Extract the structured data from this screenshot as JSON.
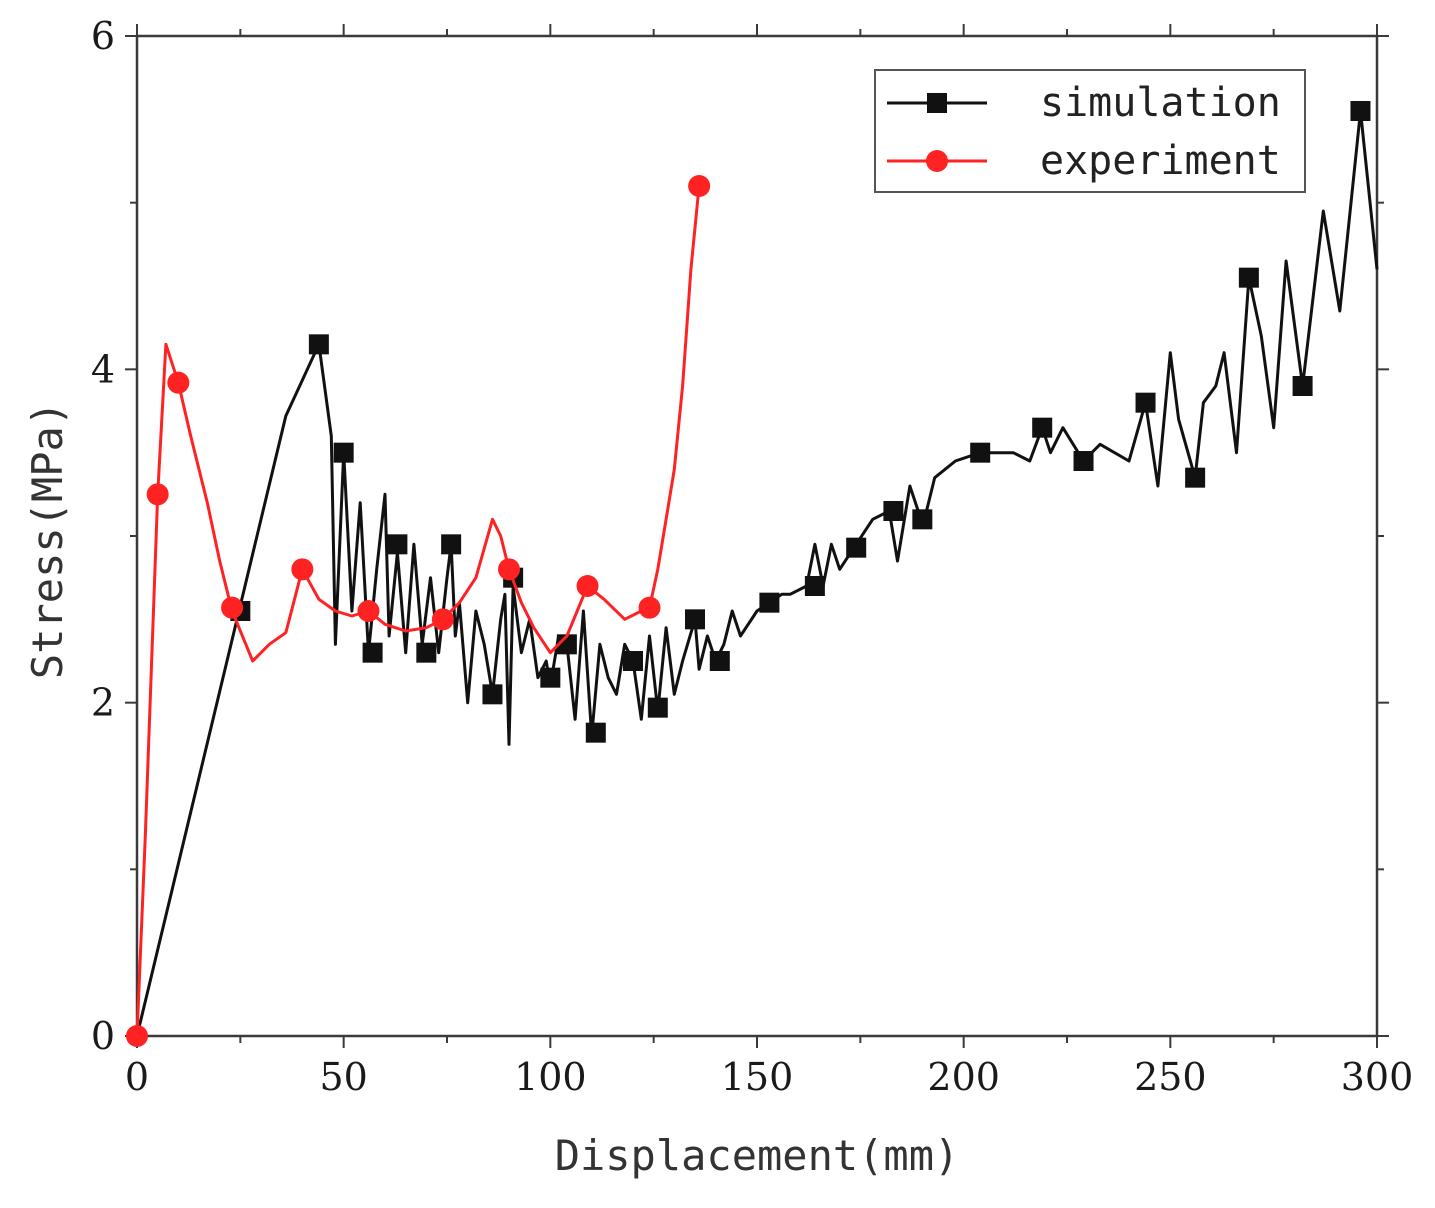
{
  "chart_data": {
    "type": "line",
    "title": "",
    "xlabel": "Displacement(mm)",
    "ylabel": "Stress(MPa)",
    "xlim": [
      0,
      300
    ],
    "ylim": [
      0,
      6
    ],
    "xticks": [
      0,
      50,
      100,
      150,
      200,
      250,
      300
    ],
    "yticks": [
      0,
      2,
      4,
      6
    ],
    "xtick_labels": [
      "0",
      "50",
      "100",
      "150",
      "200",
      "250",
      "300"
    ],
    "ytick_labels": [
      "0",
      "2",
      "4",
      "6"
    ],
    "grid": false,
    "legend_position": "top-right",
    "series": [
      {
        "name": "simulation",
        "color": "#111111",
        "marker": "square",
        "line": [
          [
            0,
            0
          ],
          [
            36,
            3.72
          ],
          [
            44,
            4.15
          ],
          [
            47,
            3.6
          ],
          [
            48,
            2.35
          ],
          [
            50,
            3.5
          ],
          [
            52,
            2.55
          ],
          [
            54,
            3.2
          ],
          [
            56,
            2.3
          ],
          [
            58,
            2.8
          ],
          [
            60,
            3.25
          ],
          [
            61,
            2.4
          ],
          [
            63,
            2.9
          ],
          [
            65,
            2.3
          ],
          [
            67,
            2.95
          ],
          [
            69,
            2.35
          ],
          [
            71,
            2.75
          ],
          [
            73,
            2.3
          ],
          [
            75,
            2.75
          ],
          [
            76,
            2.95
          ],
          [
            77,
            2.4
          ],
          [
            78,
            2.6
          ],
          [
            80,
            2.0
          ],
          [
            82,
            2.55
          ],
          [
            84,
            2.35
          ],
          [
            86,
            2.05
          ],
          [
            88,
            2.5
          ],
          [
            89,
            2.65
          ],
          [
            90,
            1.75
          ],
          [
            91,
            2.7
          ],
          [
            93,
            2.3
          ],
          [
            95,
            2.5
          ],
          [
            97,
            2.15
          ],
          [
            99,
            2.25
          ],
          [
            100,
            2.1
          ],
          [
            102,
            2.4
          ],
          [
            104,
            2.35
          ],
          [
            106,
            1.9
          ],
          [
            108,
            2.55
          ],
          [
            110,
            1.8
          ],
          [
            112,
            2.35
          ],
          [
            114,
            2.15
          ],
          [
            116,
            2.05
          ],
          [
            118,
            2.35
          ],
          [
            120,
            2.25
          ],
          [
            122,
            1.9
          ],
          [
            124,
            2.4
          ],
          [
            126,
            1.95
          ],
          [
            128,
            2.45
          ],
          [
            130,
            2.05
          ],
          [
            132,
            2.25
          ],
          [
            135,
            2.5
          ],
          [
            136,
            2.2
          ],
          [
            138,
            2.4
          ],
          [
            140,
            2.25
          ],
          [
            142,
            2.35
          ],
          [
            144,
            2.55
          ],
          [
            146,
            2.4
          ],
          [
            150,
            2.55
          ],
          [
            153,
            2.6
          ],
          [
            156,
            2.65
          ],
          [
            158,
            2.65
          ],
          [
            162,
            2.7
          ],
          [
            164,
            2.95
          ],
          [
            166,
            2.7
          ],
          [
            168,
            2.95
          ],
          [
            170,
            2.8
          ],
          [
            174,
            2.95
          ],
          [
            178,
            3.1
          ],
          [
            182,
            3.15
          ],
          [
            184,
            2.85
          ],
          [
            187,
            3.3
          ],
          [
            189,
            3.15
          ],
          [
            191,
            3.15
          ],
          [
            193,
            3.35
          ],
          [
            198,
            3.45
          ],
          [
            204,
            3.5
          ],
          [
            208,
            3.5
          ],
          [
            212,
            3.5
          ],
          [
            216,
            3.45
          ],
          [
            219,
            3.65
          ],
          [
            221,
            3.5
          ],
          [
            224,
            3.65
          ],
          [
            229,
            3.45
          ],
          [
            233,
            3.55
          ],
          [
            240,
            3.45
          ],
          [
            244,
            3.8
          ],
          [
            247,
            3.3
          ],
          [
            250,
            4.1
          ],
          [
            252,
            3.7
          ],
          [
            256,
            3.35
          ],
          [
            258,
            3.8
          ],
          [
            261,
            3.9
          ],
          [
            263,
            4.1
          ],
          [
            266,
            3.5
          ],
          [
            269,
            4.55
          ],
          [
            272,
            4.2
          ],
          [
            275,
            3.65
          ],
          [
            278,
            4.65
          ],
          [
            282,
            3.9
          ],
          [
            287,
            4.95
          ],
          [
            291,
            4.35
          ],
          [
            296,
            5.55
          ],
          [
            300,
            4.6
          ]
        ],
        "markers": [
          [
            25,
            2.55
          ],
          [
            44,
            4.15
          ],
          [
            50,
            3.5
          ],
          [
            57,
            2.3
          ],
          [
            63,
            2.95
          ],
          [
            70,
            2.3
          ],
          [
            76,
            2.95
          ],
          [
            86,
            2.05
          ],
          [
            91,
            2.75
          ],
          [
            100,
            2.15
          ],
          [
            104,
            2.35
          ],
          [
            111,
            1.82
          ],
          [
            120,
            2.25
          ],
          [
            126,
            1.97
          ],
          [
            135,
            2.5
          ],
          [
            141,
            2.25
          ],
          [
            153,
            2.6
          ],
          [
            164,
            2.7
          ],
          [
            174,
            2.93
          ],
          [
            183,
            3.15
          ],
          [
            190,
            3.1
          ],
          [
            204,
            3.5
          ],
          [
            219,
            3.65
          ],
          [
            229,
            3.45
          ],
          [
            244,
            3.8
          ],
          [
            256,
            3.35
          ],
          [
            269,
            4.55
          ],
          [
            282,
            3.9
          ],
          [
            296,
            5.55
          ]
        ]
      },
      {
        "name": "experiment",
        "color": "#ff2222",
        "marker": "circle",
        "line": [
          [
            0,
            0
          ],
          [
            2,
            1.2
          ],
          [
            5,
            3.25
          ],
          [
            7,
            4.15
          ],
          [
            10,
            3.92
          ],
          [
            13,
            3.6
          ],
          [
            17,
            3.2
          ],
          [
            20,
            2.85
          ],
          [
            23,
            2.55
          ],
          [
            28,
            2.25
          ],
          [
            32,
            2.35
          ],
          [
            36,
            2.42
          ],
          [
            40,
            2.8
          ],
          [
            44,
            2.62
          ],
          [
            48,
            2.55
          ],
          [
            52,
            2.52
          ],
          [
            56,
            2.55
          ],
          [
            60,
            2.47
          ],
          [
            65,
            2.43
          ],
          [
            70,
            2.45
          ],
          [
            74,
            2.5
          ],
          [
            78,
            2.6
          ],
          [
            82,
            2.75
          ],
          [
            86,
            3.1
          ],
          [
            88,
            3.0
          ],
          [
            90,
            2.8
          ],
          [
            93,
            2.6
          ],
          [
            96,
            2.45
          ],
          [
            100,
            2.3
          ],
          [
            104,
            2.4
          ],
          [
            109,
            2.7
          ],
          [
            113,
            2.62
          ],
          [
            118,
            2.5
          ],
          [
            122,
            2.55
          ],
          [
            124,
            2.57
          ],
          [
            126,
            2.8
          ],
          [
            128,
            3.1
          ],
          [
            130,
            3.4
          ],
          [
            132,
            3.9
          ],
          [
            134,
            4.6
          ],
          [
            136,
            5.1
          ]
        ],
        "markers": [
          [
            0,
            0
          ],
          [
            5,
            3.25
          ],
          [
            10,
            3.92
          ],
          [
            23,
            2.57
          ],
          [
            40,
            2.8
          ],
          [
            56,
            2.55
          ],
          [
            74,
            2.5
          ],
          [
            90,
            2.8
          ],
          [
            109,
            2.7
          ],
          [
            124,
            2.57
          ],
          [
            136,
            5.1
          ]
        ]
      }
    ]
  }
}
